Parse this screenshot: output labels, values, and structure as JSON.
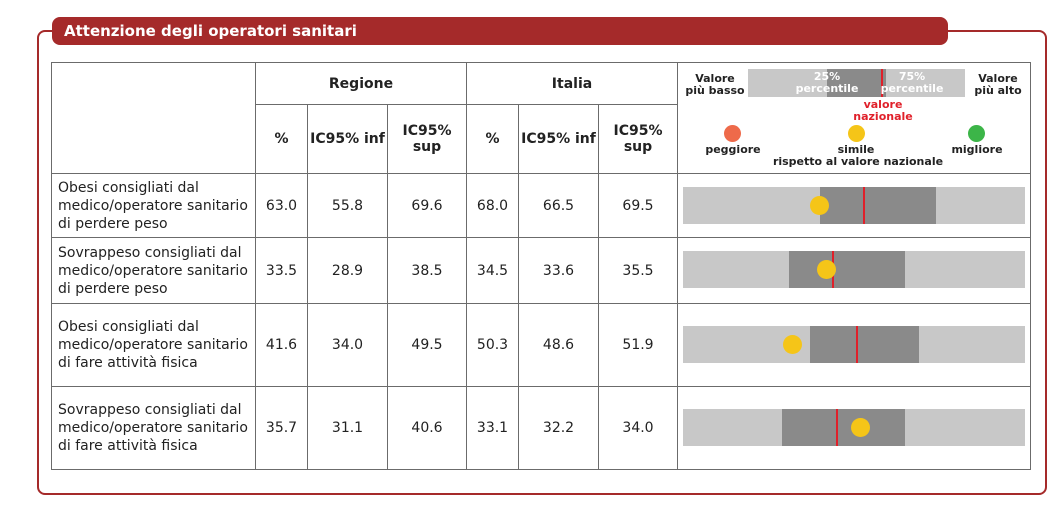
{
  "title": "Attenzione degli operatori sanitari",
  "headers": {
    "regione": "Regione",
    "italia": "Italia",
    "pct": "%",
    "ic_inf": "IC95% inf",
    "ic_sup": "IC95% sup"
  },
  "legend": {
    "low": "Valore più basso",
    "high": "Valore più alto",
    "p25": "25% percentile",
    "p75": "75% percentile",
    "national": "valore nazionale",
    "worse": "peggiore",
    "similar": "simile",
    "similar_sub": "rispetto al valore nazionale",
    "better": "migliore",
    "colors": {
      "worse": "#ee6a4a",
      "similar": "#f5c518",
      "better": "#3cb548"
    }
  },
  "rows": [
    {
      "label": "Obesi consigliati dal medico/operatore sanitario di perdere peso",
      "reg_pct": "63.0",
      "reg_inf": "55.8",
      "reg_sup": "69.6",
      "ita_pct": "68.0",
      "ita_inf": "66.5",
      "ita_sup": "69.5",
      "p25_frac": 0.4,
      "p75_frac": 0.74,
      "national_frac": 0.53,
      "region_frac": 0.4,
      "status": "similar"
    },
    {
      "label": "Sovrappeso consigliati dal medico/operatore sanitario di perdere peso",
      "reg_pct": "33.5",
      "reg_inf": "28.9",
      "reg_sup": "38.5",
      "ita_pct": "34.5",
      "ita_inf": "33.6",
      "ita_sup": "35.5",
      "p25_frac": 0.31,
      "p75_frac": 0.65,
      "national_frac": 0.44,
      "region_frac": 0.42,
      "status": "similar"
    },
    {
      "label": "Obesi consigliati dal medico/operatore sanitario di fare attività fisica",
      "reg_pct": "41.6",
      "reg_inf": "34.0",
      "reg_sup": "49.5",
      "ita_pct": "50.3",
      "ita_inf": "48.6",
      "ita_sup": "51.9",
      "p25_frac": 0.37,
      "p75_frac": 0.69,
      "national_frac": 0.51,
      "region_frac": 0.32,
      "status": "similar"
    },
    {
      "label": "Sovrappeso consigliati dal medico/operatore sanitario di fare attività fisica",
      "reg_pct": "35.7",
      "reg_inf": "31.1",
      "reg_sup": "40.6",
      "ita_pct": "33.1",
      "ita_inf": "32.2",
      "ita_sup": "34.0",
      "p25_frac": 0.29,
      "p75_frac": 0.65,
      "national_frac": 0.45,
      "region_frac": 0.52,
      "status": "similar"
    }
  ]
}
